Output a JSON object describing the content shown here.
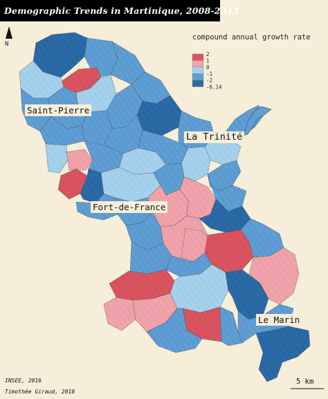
{
  "title": "Demographic Trends in Martinique, 2008-2013",
  "legend": {
    "title": "compound annual growth rate",
    "breaks": [
      "2",
      "1",
      "0",
      "-1",
      "-2",
      "-6.14"
    ],
    "colors": [
      "#d9545f",
      "#f0a3aa",
      "#a6d1ec",
      "#5e9ed4",
      "#2a6aa6"
    ]
  },
  "cities": [
    {
      "name": "Saint-Pierre"
    },
    {
      "name": "La Trinité"
    },
    {
      "name": "Fort-de-France"
    },
    {
      "name": "Le Marin"
    }
  ],
  "north_arrow": {
    "label": "N",
    "icon": "north-arrow-icon"
  },
  "scale_bar": {
    "label": "5 km"
  },
  "sources": {
    "data": "INSEE, 2016",
    "author": "Timothée Giraud, 2018"
  }
}
